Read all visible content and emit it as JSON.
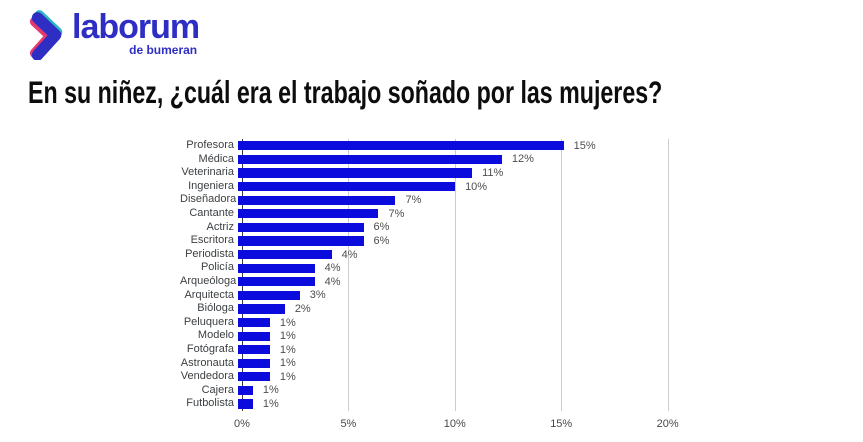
{
  "logo": {
    "brand": "laborum",
    "subtitle": "de bumeran",
    "colors": {
      "blue": "#2e2ec4",
      "teal": "#2bb8c5",
      "pink": "#e53a6d"
    }
  },
  "title": "En su niñez, ¿cuál era el trabajo soñado por las mujeres?",
  "chart_data": {
    "type": "bar",
    "orientation": "horizontal",
    "title": "En su niñez, ¿cuál era el trabajo soñado por las mujeres?",
    "categories": [
      "Profesora",
      "Médica",
      "Veterinaria",
      "Ingeniera",
      "Diseñadora",
      "Cantante",
      "Actriz",
      "Escritora",
      "Periodista",
      "Policía",
      "Arqueóloga",
      "Arquitecta",
      "Bióloga",
      "Peluquera",
      "Modelo",
      "Fotógrafa",
      "Astronauta",
      "Vendedora",
      "Cajera",
      "Futbolista"
    ],
    "values": [
      15.3,
      12.4,
      11.0,
      10.2,
      7.4,
      6.6,
      5.9,
      5.9,
      4.4,
      3.6,
      3.6,
      2.9,
      2.2,
      1.5,
      1.5,
      1.5,
      1.5,
      1.5,
      0.7,
      0.7
    ],
    "value_labels": [
      "15%",
      "12%",
      "11%",
      "10%",
      "7%",
      "7%",
      "6%",
      "6%",
      "4%",
      "4%",
      "4%",
      "3%",
      "2%",
      "1%",
      "1%",
      "1%",
      "1%",
      "1%",
      "1%",
      "1%"
    ],
    "x_ticks": [
      {
        "value": 0,
        "label": "0%"
      },
      {
        "value": 5,
        "label": "5%"
      },
      {
        "value": 10,
        "label": "10%"
      },
      {
        "value": 15,
        "label": "15%"
      },
      {
        "value": 20,
        "label": "20%"
      }
    ],
    "xlim": [
      0,
      24.2
    ],
    "xlabel": "",
    "ylabel": "",
    "grid": true,
    "legend": "none",
    "colors": {
      "bar": "#0b0bdd",
      "gridline": "#cccccc",
      "baseline": "#3b3b3b",
      "category_label": "#3c4043",
      "value_label": "#4d4d4d",
      "tick_label": "#45494d"
    }
  }
}
